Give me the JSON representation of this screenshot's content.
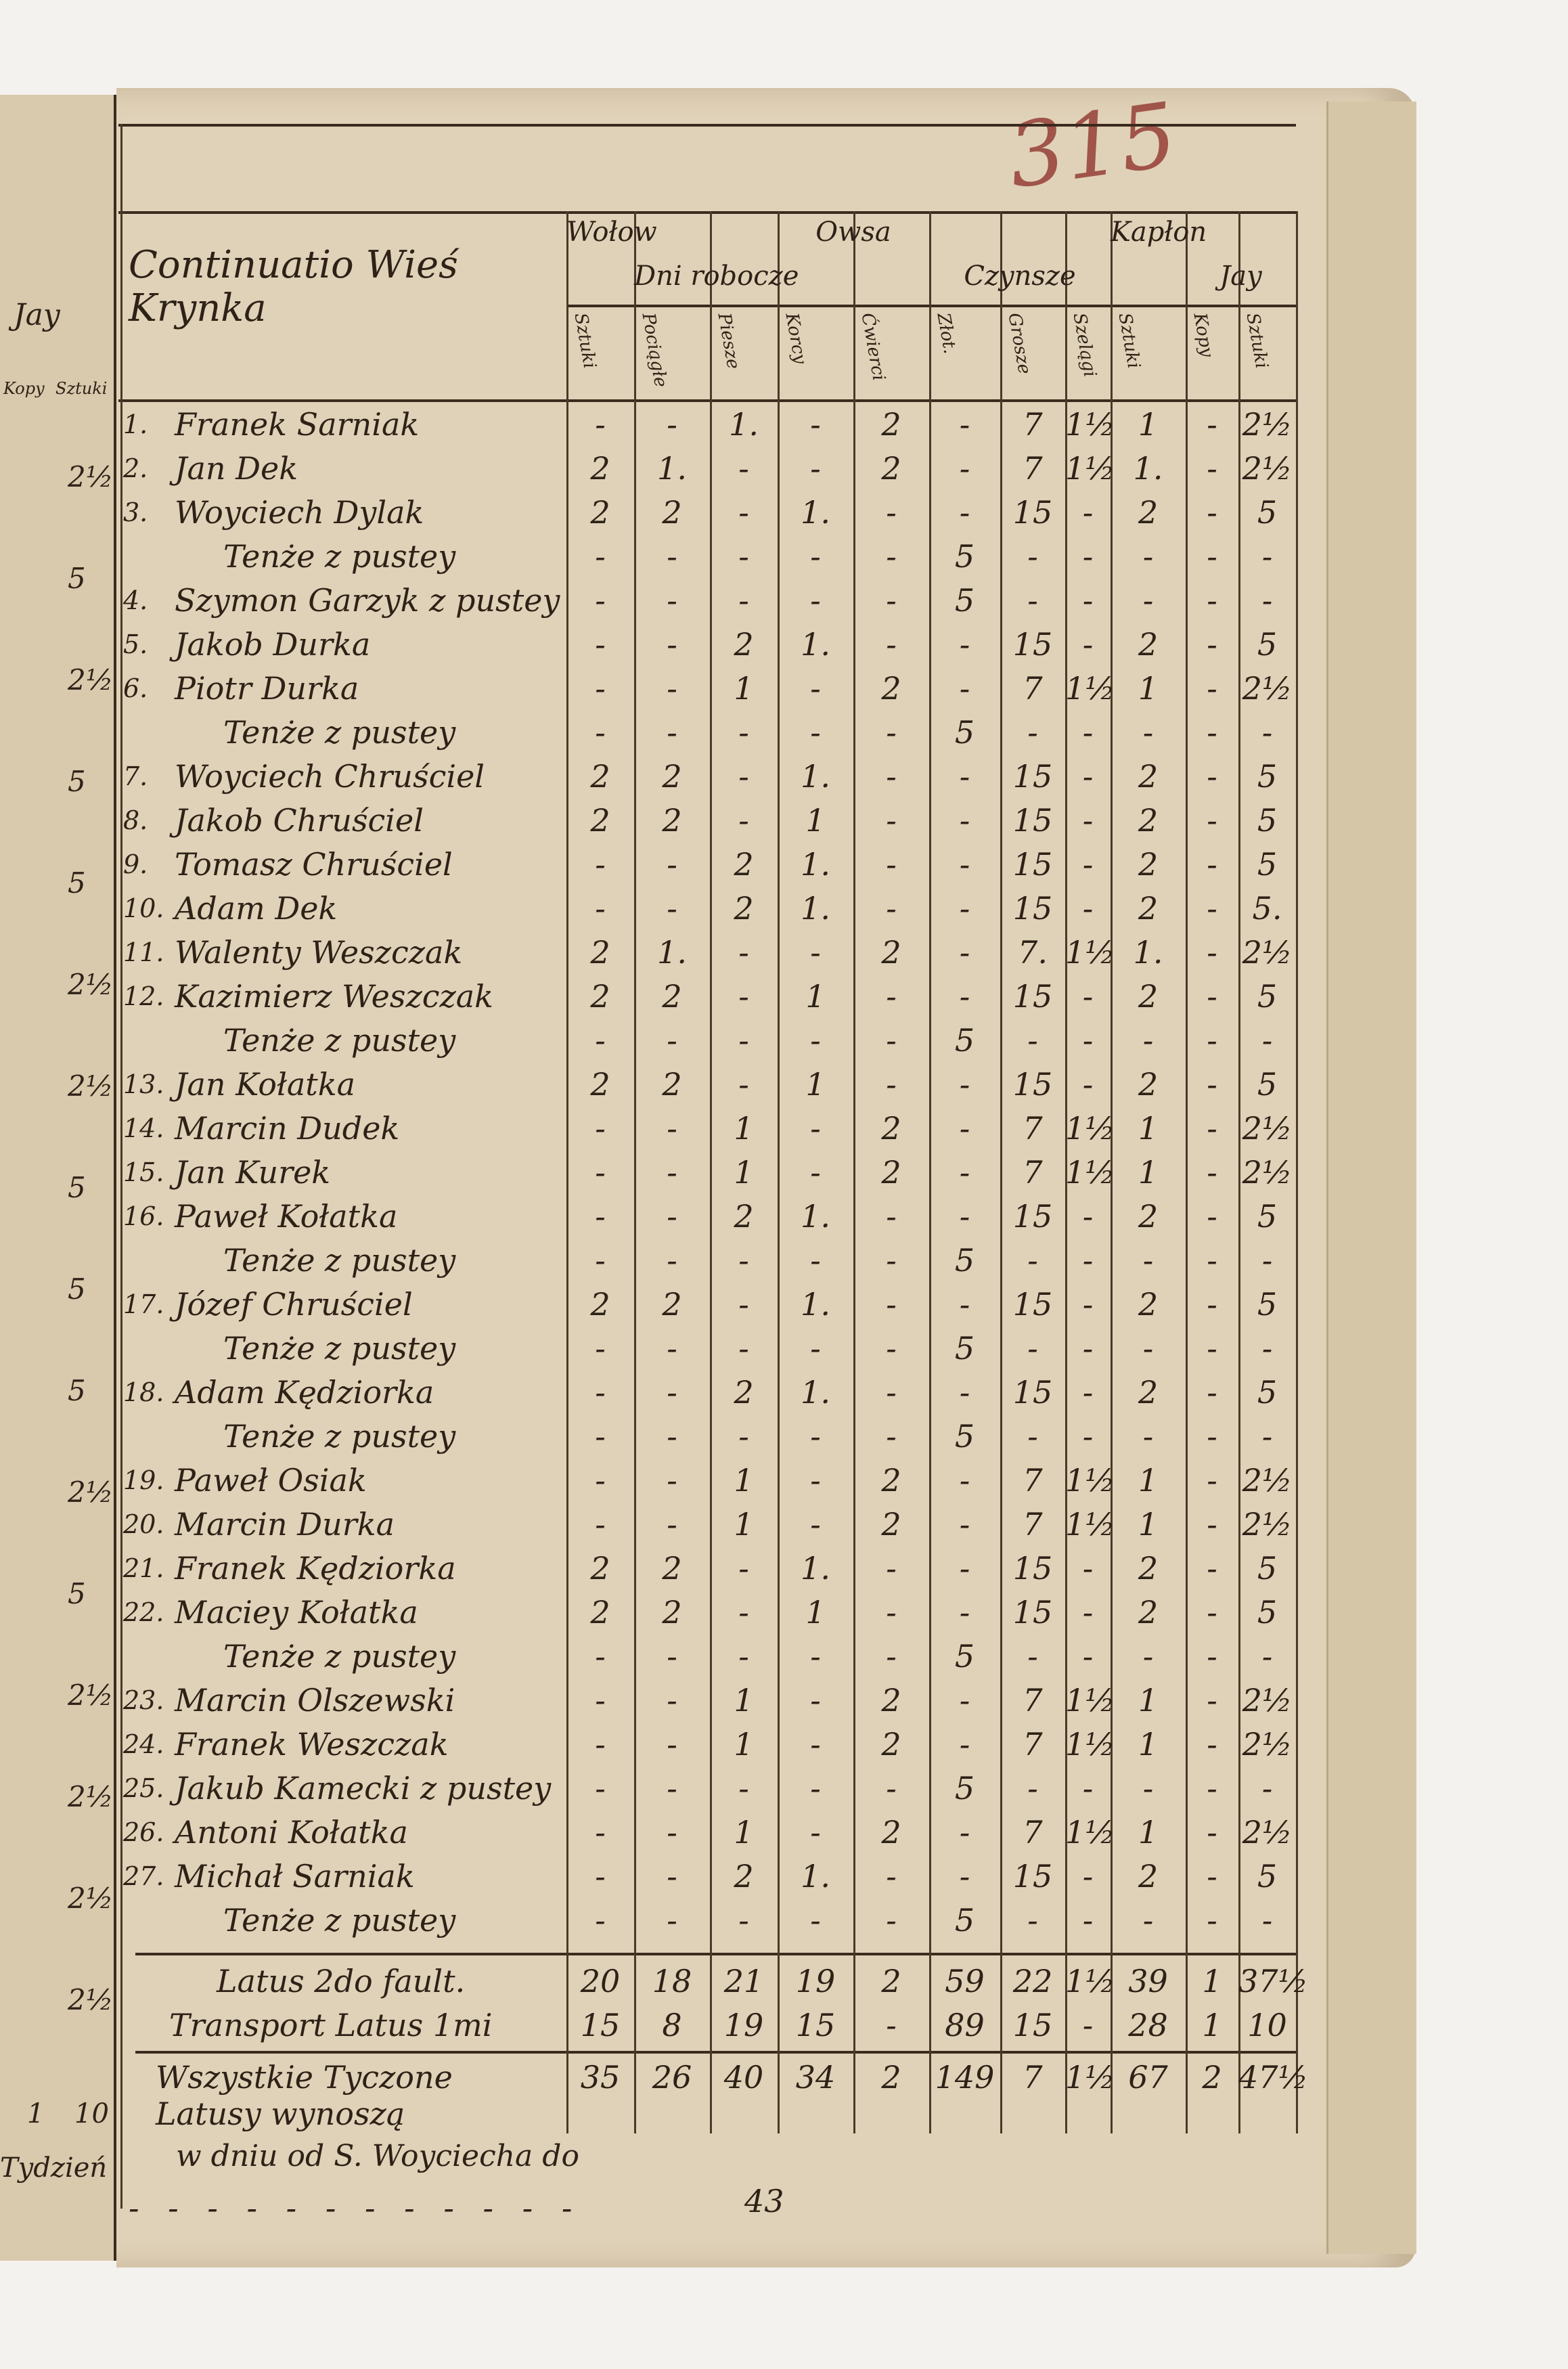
{
  "page_number": "315",
  "title": "Continuatio Wieś Krynka",
  "column_groups": [
    {
      "label": "Wołow",
      "span": 1
    },
    {
      "label": "Dni robocze",
      "span": 2
    },
    {
      "label": "Owsa",
      "span": 2
    },
    {
      "label": "Czynsze",
      "span": 3
    },
    {
      "label": "Kapłon",
      "span": 1
    },
    {
      "label": "Jay",
      "span": 2
    }
  ],
  "columns": [
    "Sztuki",
    "Pociągłe",
    "Piesze",
    "Korcy",
    "Ćwierci",
    "Złot.",
    "Grosze",
    "Szelągi",
    "Sztuki",
    "Kopy",
    "Sztuki"
  ],
  "rows": [
    {
      "no": "1.",
      "name": "Franek Sarniak",
      "v": [
        "-",
        "-",
        "1.",
        "-",
        "2",
        "-",
        "7",
        "1½",
        "1",
        "-",
        "2½"
      ]
    },
    {
      "no": "2.",
      "name": "Jan Dek",
      "v": [
        "2",
        "1.",
        "-",
        "-",
        "2",
        "-",
        "7",
        "1½",
        "1.",
        "-",
        "2½"
      ]
    },
    {
      "no": "3.",
      "name": "Woyciech Dylak",
      "v": [
        "2",
        "2",
        "-",
        "1.",
        "-",
        "-",
        "15",
        "-",
        "2",
        "-",
        "5"
      ]
    },
    {
      "no": "",
      "name": "Tenże z pustey",
      "v": [
        "-",
        "-",
        "-",
        "-",
        "-",
        "5",
        "-",
        "-",
        "-",
        "-",
        "-"
      ]
    },
    {
      "no": "4.",
      "name": "Szymon Garzyk z pustey",
      "v": [
        "-",
        "-",
        "-",
        "-",
        "-",
        "5",
        "-",
        "-",
        "-",
        "-",
        "-"
      ]
    },
    {
      "no": "5.",
      "name": "Jakob Durka",
      "v": [
        "-",
        "-",
        "2",
        "1.",
        "-",
        "-",
        "15",
        "-",
        "2",
        "-",
        "5"
      ]
    },
    {
      "no": "6.",
      "name": "Piotr Durka",
      "v": [
        "-",
        "-",
        "1",
        "-",
        "2",
        "-",
        "7",
        "1½",
        "1",
        "-",
        "2½"
      ]
    },
    {
      "no": "",
      "name": "Tenże z pustey",
      "v": [
        "-",
        "-",
        "-",
        "-",
        "-",
        "5",
        "-",
        "-",
        "-",
        "-",
        "-"
      ]
    },
    {
      "no": "7.",
      "name": "Woyciech Chruściel",
      "v": [
        "2",
        "2",
        "-",
        "1.",
        "-",
        "-",
        "15",
        "-",
        "2",
        "-",
        "5"
      ]
    },
    {
      "no": "8.",
      "name": "Jakob Chruściel",
      "v": [
        "2",
        "2",
        "-",
        "1",
        "-",
        "-",
        "15",
        "-",
        "2",
        "-",
        "5"
      ]
    },
    {
      "no": "9.",
      "name": "Tomasz Chruściel",
      "v": [
        "-",
        "-",
        "2",
        "1.",
        "-",
        "-",
        "15",
        "-",
        "2",
        "-",
        "5"
      ]
    },
    {
      "no": "10.",
      "name": "Adam Dek",
      "v": [
        "-",
        "-",
        "2",
        "1.",
        "-",
        "-",
        "15",
        "-",
        "2",
        "-",
        "5."
      ]
    },
    {
      "no": "11.",
      "name": "Walenty Weszczak",
      "v": [
        "2",
        "1.",
        "-",
        "-",
        "2",
        "-",
        "7.",
        "1½",
        "1.",
        "-",
        "2½"
      ]
    },
    {
      "no": "12.",
      "name": "Kazimierz Weszczak",
      "v": [
        "2",
        "2",
        "-",
        "1",
        "-",
        "-",
        "15",
        "-",
        "2",
        "-",
        "5"
      ]
    },
    {
      "no": "",
      "name": "Tenże z pustey",
      "v": [
        "-",
        "-",
        "-",
        "-",
        "-",
        "5",
        "-",
        "-",
        "-",
        "-",
        "-"
      ]
    },
    {
      "no": "13.",
      "name": "Jan Kołatka",
      "v": [
        "2",
        "2",
        "-",
        "1",
        "-",
        "-",
        "15",
        "-",
        "2",
        "-",
        "5"
      ]
    },
    {
      "no": "14.",
      "name": "Marcin Dudek",
      "v": [
        "-",
        "-",
        "1",
        "-",
        "2",
        "-",
        "7",
        "1½",
        "1",
        "-",
        "2½"
      ]
    },
    {
      "no": "15.",
      "name": "Jan Kurek",
      "v": [
        "-",
        "-",
        "1",
        "-",
        "2",
        "-",
        "7",
        "1½",
        "1",
        "-",
        "2½"
      ]
    },
    {
      "no": "16.",
      "name": "Paweł Kołatka",
      "v": [
        "-",
        "-",
        "2",
        "1.",
        "-",
        "-",
        "15",
        "-",
        "2",
        "-",
        "5"
      ]
    },
    {
      "no": "",
      "name": "Tenże z pustey",
      "v": [
        "-",
        "-",
        "-",
        "-",
        "-",
        "5",
        "-",
        "-",
        "-",
        "-",
        "-"
      ]
    },
    {
      "no": "17.",
      "name": "Józef Chruściel",
      "v": [
        "2",
        "2",
        "-",
        "1.",
        "-",
        "-",
        "15",
        "-",
        "2",
        "-",
        "5"
      ]
    },
    {
      "no": "",
      "name": "Tenże z pustey",
      "v": [
        "-",
        "-",
        "-",
        "-",
        "-",
        "5",
        "-",
        "-",
        "-",
        "-",
        "-"
      ]
    },
    {
      "no": "18.",
      "name": "Adam Kędziorka",
      "v": [
        "-",
        "-",
        "2",
        "1.",
        "-",
        "-",
        "15",
        "-",
        "2",
        "-",
        "5"
      ]
    },
    {
      "no": "",
      "name": "Tenże z pustey",
      "v": [
        "-",
        "-",
        "-",
        "-",
        "-",
        "5",
        "-",
        "-",
        "-",
        "-",
        "-"
      ]
    },
    {
      "no": "19.",
      "name": "Paweł Osiak",
      "v": [
        "-",
        "-",
        "1",
        "-",
        "2",
        "-",
        "7",
        "1½",
        "1",
        "-",
        "2½"
      ]
    },
    {
      "no": "20.",
      "name": "Marcin Durka",
      "v": [
        "-",
        "-",
        "1",
        "-",
        "2",
        "-",
        "7",
        "1½",
        "1",
        "-",
        "2½"
      ]
    },
    {
      "no": "21.",
      "name": "Franek Kędziorka",
      "v": [
        "2",
        "2",
        "-",
        "1.",
        "-",
        "-",
        "15",
        "-",
        "2",
        "-",
        "5"
      ]
    },
    {
      "no": "22.",
      "name": "Maciey Kołatka",
      "v": [
        "2",
        "2",
        "-",
        "1",
        "-",
        "-",
        "15",
        "-",
        "2",
        "-",
        "5"
      ]
    },
    {
      "no": "",
      "name": "Tenże z pustey",
      "v": [
        "-",
        "-",
        "-",
        "-",
        "-",
        "5",
        "-",
        "-",
        "-",
        "-",
        "-"
      ]
    },
    {
      "no": "23.",
      "name": "Marcin Olszewski",
      "v": [
        "-",
        "-",
        "1",
        "-",
        "2",
        "-",
        "7",
        "1½",
        "1",
        "-",
        "2½"
      ]
    },
    {
      "no": "24.",
      "name": "Franek Weszczak",
      "v": [
        "-",
        "-",
        "1",
        "-",
        "2",
        "-",
        "7",
        "1½",
        "1",
        "-",
        "2½"
      ]
    },
    {
      "no": "25.",
      "name": "Jakub Kamecki z pustey",
      "v": [
        "-",
        "-",
        "-",
        "-",
        "-",
        "5",
        "-",
        "-",
        "-",
        "-",
        "-"
      ]
    },
    {
      "no": "26.",
      "name": "Antoni Kołatka",
      "v": [
        "-",
        "-",
        "1",
        "-",
        "2",
        "-",
        "7",
        "1½",
        "1",
        "-",
        "2½"
      ]
    },
    {
      "no": "27.",
      "name": "Michał Sarniak",
      "v": [
        "-",
        "-",
        "2",
        "1.",
        "-",
        "-",
        "15",
        "-",
        "2",
        "-",
        "5"
      ]
    },
    {
      "no": "",
      "name": "Tenże z pustey",
      "v": [
        "-",
        "-",
        "-",
        "-",
        "-",
        "5",
        "-",
        "-",
        "-",
        "-",
        "-"
      ]
    }
  ],
  "totals": [
    {
      "label": "Latus 2do fault.",
      "v": [
        "20",
        "18",
        "21",
        "19",
        "2",
        "59",
        "22",
        "1½",
        "39",
        "1",
        "37½"
      ]
    },
    {
      "label": "Transport Latus 1mi",
      "v": [
        "15",
        "8",
        "19",
        "15",
        "-",
        "89",
        "15",
        "-",
        "28",
        "1",
        "10"
      ]
    },
    {
      "label": "Wszystkie Tyczone Latusy wynoszą",
      "v": [
        "35",
        "26",
        "40",
        "34",
        "2",
        "149",
        "7",
        "1½",
        "67",
        "2",
        "47½"
      ]
    }
  ],
  "footer_note": "w dniu od S. Woyciecha do",
  "footer_value": "43",
  "left_page": {
    "header": "Jay",
    "sub1": "Kopy",
    "sub2": "Sztuki",
    "bottom_values": [
      "1",
      "10"
    ],
    "bottom_label": "Tydzień",
    "values": [
      "2½",
      "5",
      "2½",
      "5",
      "5",
      "2½",
      "2½",
      "5",
      "5",
      "5",
      "2½",
      "5",
      "2½",
      "2½",
      "2½",
      "2½"
    ]
  },
  "colors": {
    "ink": "#2e2217",
    "paper": "#e0d2b8",
    "page_number_ink": "#a0544a"
  }
}
